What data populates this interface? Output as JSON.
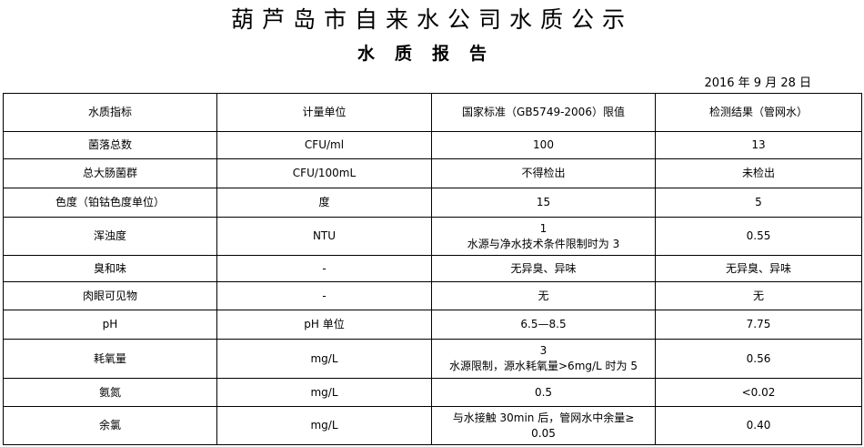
{
  "title": "葫芦岛市自来水公司水质公示",
  "subtitle": "水质报告",
  "date": "2016 年 9 月 28 日",
  "table": {
    "headers": [
      "水质指标",
      "计量单位",
      "国家标准（GB5749-2006）限值",
      "检测结果（管网水）"
    ],
    "rows": [
      [
        "菌落总数",
        "CFU/ml",
        "100",
        "13"
      ],
      [
        "总大肠菌群",
        "CFU/100mL",
        "不得检出",
        "未检出"
      ],
      [
        "色度（铂钴色度单位）",
        "度",
        "15",
        "5"
      ],
      [
        "浑浊度",
        "NTU",
        "1\n水源与净水技术条件限制时为 3",
        "0.55"
      ],
      [
        "臭和味",
        "-",
        "无异臭、异味",
        "无异臭、异味"
      ],
      [
        "肉眼可见物",
        "-",
        "无",
        "无"
      ],
      [
        "pH",
        "pH 单位",
        "6.5—8.5",
        "7.75"
      ],
      [
        "耗氧量",
        "mg/L",
        "3\n水源限制，源水耗氧量>6mg/L 时为 5",
        "0.56"
      ],
      [
        "氨氮",
        "mg/L",
        "0.5",
        "<0.02"
      ],
      [
        "余氯",
        "mg/L",
        "与水接触 30min 后，管网水中余量≥\n0.05",
        "0.40"
      ]
    ]
  }
}
